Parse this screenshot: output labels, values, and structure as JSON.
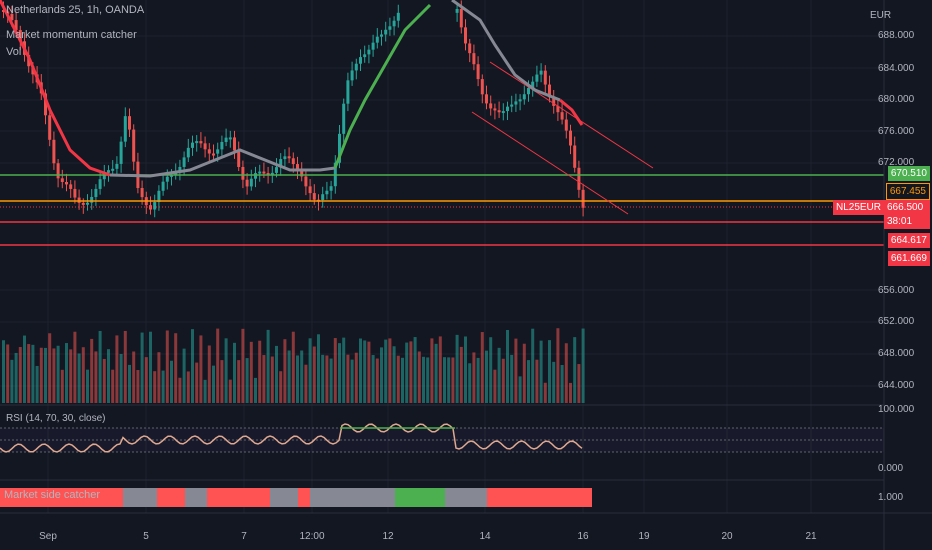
{
  "header": {
    "symbol_line": "Netherlands 25, 1h, OANDA",
    "indicator1": "Market momentum catcher",
    "indicator2": "Vol"
  },
  "price_axis": {
    "currency": "EUR",
    "ticks": [
      "688.000",
      "684.000",
      "680.000",
      "676.000",
      "672.000",
      "656.000",
      "652.000",
      "648.000",
      "644.000"
    ]
  },
  "tags": {
    "green_level": "670.510",
    "orange_level": "667.455",
    "current_price": "666.500",
    "countdown": "38:01",
    "red_level_1": "664.617",
    "red_level_2": "661.669",
    "symbol": "NL25EUR"
  },
  "rsi": {
    "label": "RSI (14, 70, 30, close)",
    "ticks": [
      "100.000",
      "0.000"
    ]
  },
  "market_side": {
    "label": "Market side catcher",
    "tick": "1.000"
  },
  "time_axis": [
    "Sep",
    "5",
    "7",
    "12:00",
    "12",
    "14",
    "16",
    "19",
    "20",
    "21"
  ],
  "colors": {
    "background": "#131722",
    "up": "#26a69a",
    "down": "#ef5350",
    "green_line": "#4caf50",
    "orange_line": "#ff9800",
    "red_line": "#f23645"
  }
}
